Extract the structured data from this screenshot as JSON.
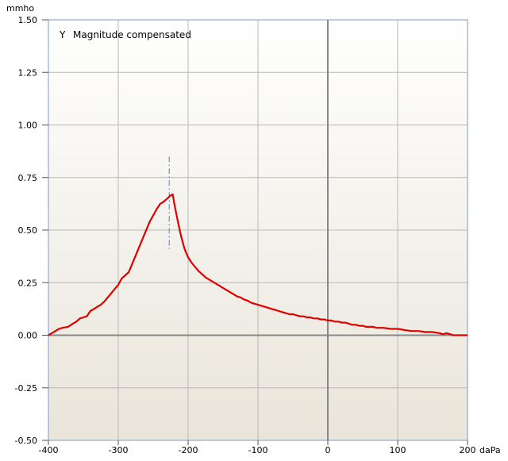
{
  "chart_data": {
    "type": "line",
    "title": "",
    "y_unit": "mmho",
    "x_unit": "daPa",
    "legend": {
      "symbol": "Y",
      "text": "Magnitude compensated",
      "placement": "top-left"
    },
    "xlim": [
      -400,
      200
    ],
    "ylim": [
      -0.5,
      1.5
    ],
    "x_ticks": [
      "-400",
      "-300",
      "-200",
      "-100",
      "0",
      "100",
      "200"
    ],
    "y_ticks": [
      "1.50",
      "1.25",
      "1.00",
      "0.75",
      "0.50",
      "0.25",
      "0.00",
      "-0.25",
      "-0.50"
    ],
    "x_tick_values": [
      -400,
      -300,
      -200,
      -100,
      0,
      100,
      200
    ],
    "y_tick_values": [
      1.5,
      1.25,
      1.0,
      0.75,
      0.5,
      0.25,
      0.0,
      -0.25,
      -0.5
    ],
    "grid": true,
    "colors": {
      "series": "#e00000",
      "grid": "#b8b8b8",
      "zero_axis": "#888888",
      "peak_marker": "#6e8fd8",
      "frame": "#7a9cc8"
    },
    "peak_marker": {
      "x": -227,
      "y_range": [
        0.41,
        0.85
      ]
    },
    "series": [
      {
        "color": "#e00000",
        "x": [
          -400,
          -395,
          -390,
          -385,
          -380,
          -372,
          -365,
          -360,
          -355,
          -350,
          -345,
          -340,
          -335,
          -330,
          -325,
          -320,
          -315,
          -310,
          -305,
          -300,
          -295,
          -290,
          -285,
          -280,
          -275,
          -270,
          -265,
          -260,
          -255,
          -250,
          -245,
          -240,
          -235,
          -230,
          -225,
          -222,
          -220,
          -217,
          -214,
          -210,
          -205,
          -200,
          -195,
          -190,
          -185,
          -180,
          -175,
          -170,
          -165,
          -160,
          -155,
          -150,
          -145,
          -140,
          -135,
          -130,
          -125,
          -120,
          -115,
          -110,
          -105,
          -100,
          -95,
          -90,
          -85,
          -80,
          -75,
          -70,
          -65,
          -60,
          -55,
          -50,
          -45,
          -40,
          -35,
          -30,
          -25,
          -20,
          -15,
          -10,
          -5,
          0,
          5,
          10,
          15,
          20,
          25,
          30,
          35,
          40,
          45,
          50,
          55,
          60,
          65,
          70,
          75,
          80,
          90,
          100,
          110,
          120,
          130,
          140,
          150,
          160,
          165,
          170,
          175,
          180,
          185,
          190,
          195,
          200
        ],
        "y": [
          0.0,
          0.01,
          0.02,
          0.03,
          0.035,
          0.04,
          0.055,
          0.065,
          0.08,
          0.085,
          0.09,
          0.115,
          0.125,
          0.135,
          0.145,
          0.16,
          0.18,
          0.2,
          0.22,
          0.24,
          0.27,
          0.285,
          0.3,
          0.34,
          0.38,
          0.42,
          0.46,
          0.5,
          0.54,
          0.57,
          0.6,
          0.625,
          0.635,
          0.65,
          0.665,
          0.67,
          0.63,
          0.58,
          0.53,
          0.47,
          0.41,
          0.37,
          0.345,
          0.325,
          0.305,
          0.29,
          0.275,
          0.265,
          0.255,
          0.245,
          0.235,
          0.225,
          0.215,
          0.205,
          0.195,
          0.185,
          0.18,
          0.17,
          0.165,
          0.155,
          0.15,
          0.145,
          0.14,
          0.135,
          0.13,
          0.125,
          0.12,
          0.115,
          0.11,
          0.105,
          0.1,
          0.1,
          0.095,
          0.09,
          0.09,
          0.085,
          0.085,
          0.08,
          0.08,
          0.075,
          0.075,
          0.07,
          0.07,
          0.065,
          0.065,
          0.06,
          0.06,
          0.055,
          0.05,
          0.05,
          0.045,
          0.045,
          0.04,
          0.04,
          0.04,
          0.035,
          0.035,
          0.035,
          0.03,
          0.03,
          0.025,
          0.02,
          0.02,
          0.015,
          0.015,
          0.01,
          0.005,
          0.01,
          0.005,
          0.0,
          0.0,
          0.0,
          0.0,
          0.0
        ]
      }
    ]
  }
}
